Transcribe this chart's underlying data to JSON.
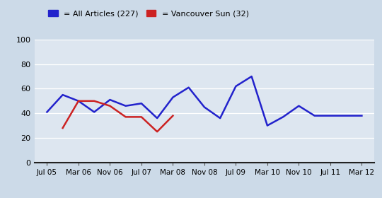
{
  "background_color": "#ccdae8",
  "plot_bg_color": "#dde6f0",
  "x_labels": [
    "Jul 05",
    "Mar 06",
    "Nov 06",
    "Jul 07",
    "Mar 08",
    "Nov 08",
    "Jul 09",
    "Mar 10",
    "Nov 10",
    "Jul 11",
    "Mar 12"
  ],
  "ylim": [
    0,
    100
  ],
  "yticks": [
    0,
    20,
    40,
    60,
    80,
    100
  ],
  "all_articles_color": "#2222cc",
  "vancouver_sun_color": "#cc2222",
  "all_articles_label": "= All Articles (227)",
  "vancouver_sun_label": "= Vancouver Sun (32)",
  "all_articles_x": [
    0,
    0.5,
    1,
    1.5,
    2,
    2.5,
    3,
    3.5,
    4,
    4.5,
    5,
    5.5,
    6,
    6.5,
    7,
    7.5,
    8,
    8.5,
    9,
    10
  ],
  "all_articles_y": [
    41,
    55,
    50,
    41,
    51,
    46,
    48,
    36,
    53,
    61,
    45,
    36,
    62,
    70,
    30,
    37,
    46,
    38,
    38,
    38
  ],
  "vancouver_sun_x": [
    0.5,
    1.0,
    1.5,
    2.0,
    2.5,
    3.0,
    3.5,
    4.0
  ],
  "vancouver_sun_y": [
    28,
    50,
    50,
    46,
    37,
    37,
    25,
    38
  ]
}
